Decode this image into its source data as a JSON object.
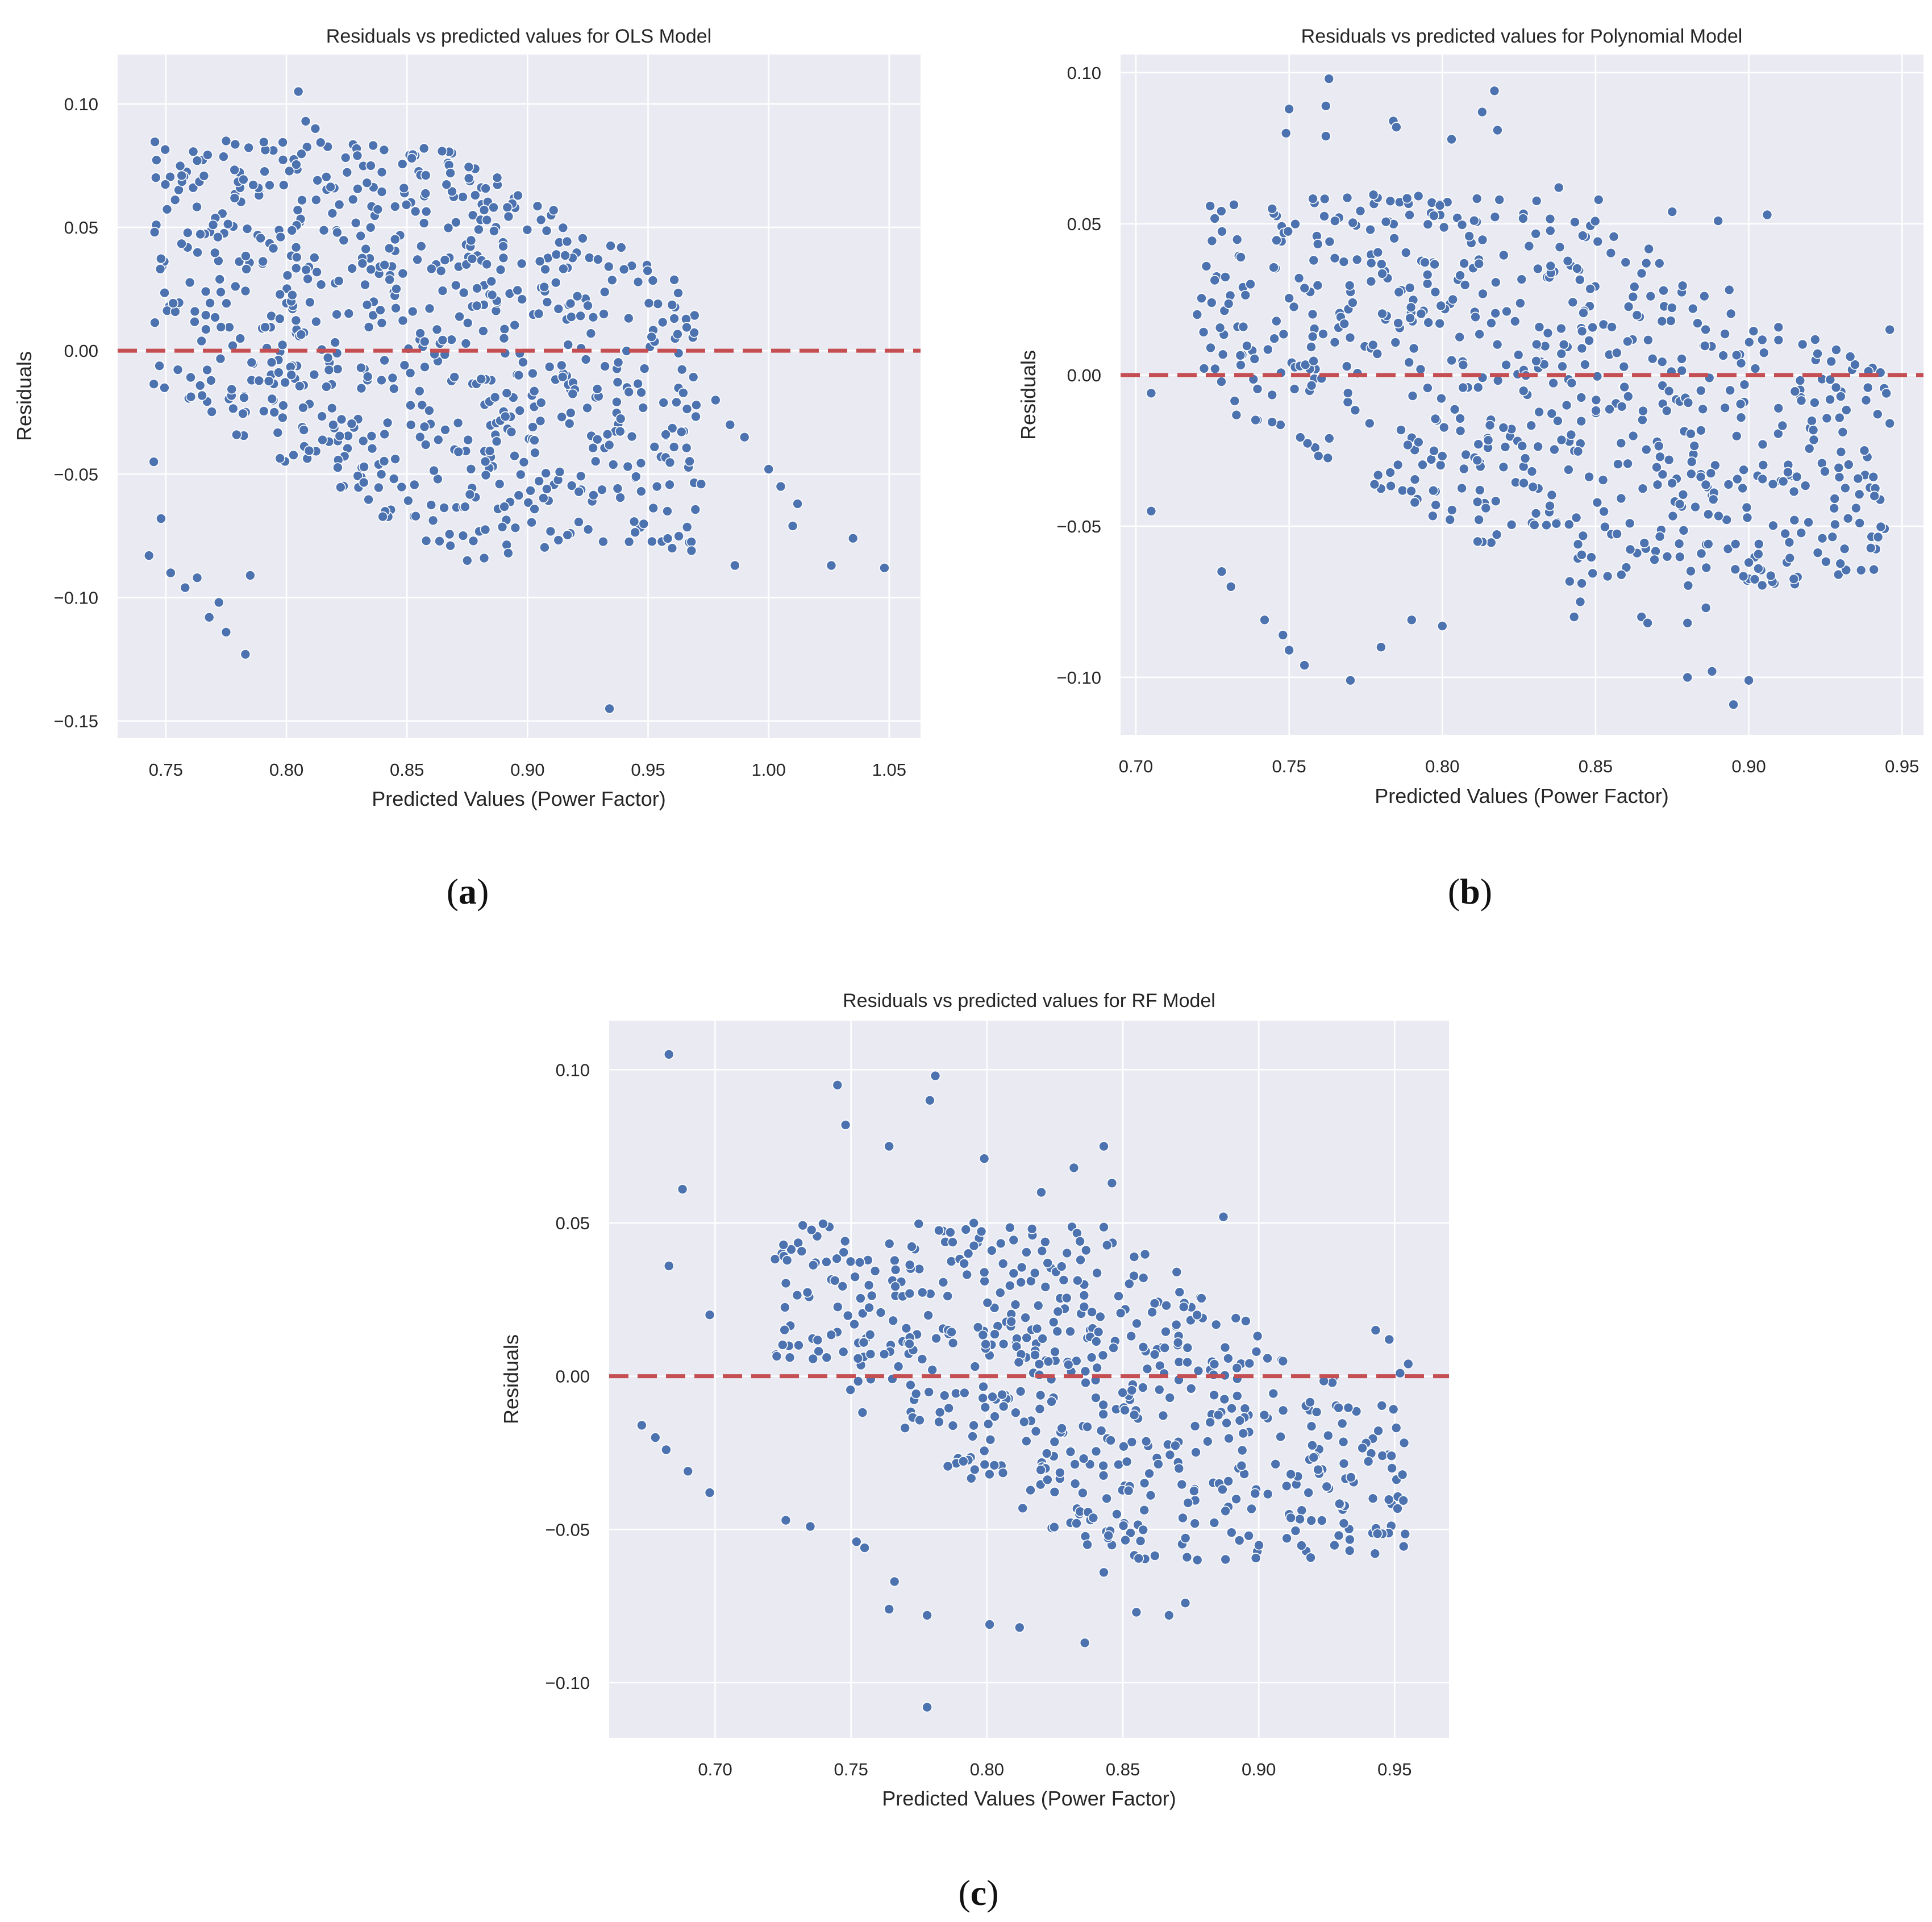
{
  "colors": {
    "plot_background": "#eaeaf2",
    "grid": "#ffffff",
    "points": "#4c72b0",
    "zero_line": "#c44e52",
    "text": "#262626"
  },
  "chart_data": [
    {
      "id": "a",
      "type": "scatter",
      "panel_label": "a",
      "title": "Residuals vs predicted values for OLS Model",
      "xlabel": "Predicted Values (Power Factor)",
      "ylabel": "Residuals",
      "xlim": [
        0.73,
        1.063
      ],
      "ylim": [
        -0.157,
        0.12
      ],
      "xticks": [
        0.75,
        0.8,
        0.85,
        0.9,
        0.95,
        1.0,
        1.05
      ],
      "xtick_labels": [
        "0.75",
        "0.80",
        "0.85",
        "0.90",
        "0.95",
        "1.00",
        "1.05"
      ],
      "yticks": [
        0.1,
        0.05,
        0.0,
        -0.05,
        -0.1,
        -0.15
      ],
      "ytick_labels": [
        "0.10",
        "0.05",
        "0.00",
        "−0.05",
        "−0.10",
        "−0.15"
      ],
      "grid": true,
      "reference_line": {
        "y": 0.0,
        "style": "dashed",
        "color": "#c44e52"
      },
      "series": [
        {
          "name": "residuals",
          "dense_region": {
            "x_range": [
              0.745,
              0.97
            ],
            "y_range": [
              -0.08,
              0.085
            ]
          },
          "points": [
            [
              0.805,
              0.105
            ],
            [
              0.808,
              0.093
            ],
            [
              0.812,
              0.09
            ],
            [
              0.775,
              0.085
            ],
            [
              0.852,
              0.078
            ],
            [
              0.763,
              0.077
            ],
            [
              0.835,
              0.075
            ],
            [
              0.868,
              0.072
            ],
            [
              0.882,
              0.057
            ],
            [
              0.745,
              -0.045
            ],
            [
              0.748,
              -0.068
            ],
            [
              0.743,
              -0.083
            ],
            [
              0.752,
              -0.09
            ],
            [
              0.758,
              -0.096
            ],
            [
              0.763,
              -0.092
            ],
            [
              0.768,
              -0.108
            ],
            [
              0.772,
              -0.102
            ],
            [
              0.775,
              -0.114
            ],
            [
              0.783,
              -0.123
            ],
            [
              0.785,
              -0.091
            ],
            [
              0.858,
              -0.077
            ],
            [
              0.868,
              -0.079
            ],
            [
              0.875,
              -0.085
            ],
            [
              0.882,
              -0.084
            ],
            [
              0.892,
              -0.082
            ],
            [
              0.908,
              -0.056
            ],
            [
              0.934,
              -0.145
            ],
            [
              0.945,
              -0.051
            ],
            [
              0.958,
              -0.065
            ],
            [
              0.96,
              -0.08
            ],
            [
              0.968,
              -0.081
            ],
            [
              0.972,
              -0.054
            ],
            [
              0.986,
              -0.087
            ],
            [
              1.01,
              -0.071
            ],
            [
              1.026,
              -0.087
            ],
            [
              1.035,
              -0.076
            ],
            [
              1.048,
              -0.088
            ],
            [
              0.99,
              -0.035
            ],
            [
              1.0,
              -0.048
            ],
            [
              1.005,
              -0.055
            ],
            [
              1.012,
              -0.062
            ],
            [
              0.97,
              -0.022
            ],
            [
              0.978,
              -0.02
            ],
            [
              0.984,
              -0.03
            ]
          ]
        }
      ]
    },
    {
      "id": "b",
      "type": "scatter",
      "panel_label": "b",
      "title": "Residuals vs predicted values for Polynomial Model",
      "xlabel": "Predicted Values (Power Factor)",
      "ylabel": "Residuals",
      "xlim": [
        0.695,
        0.957
      ],
      "ylim": [
        -0.119,
        0.106
      ],
      "xticks": [
        0.7,
        0.75,
        0.8,
        0.85,
        0.9,
        0.95
      ],
      "xtick_labels": [
        "0.70",
        "0.75",
        "0.80",
        "0.85",
        "0.90",
        "0.95"
      ],
      "yticks": [
        0.1,
        0.05,
        0.0,
        -0.05,
        -0.1
      ],
      "ytick_labels": [
        "0.10",
        "0.05",
        "0.00",
        "−0.05",
        "−0.10"
      ],
      "grid": true,
      "reference_line": {
        "y": 0.0,
        "style": "dashed",
        "color": "#c44e52"
      },
      "series": [
        {
          "name": "residuals",
          "dense_region": {
            "x_range": [
              0.72,
              0.945
            ],
            "y_range": [
              -0.07,
              0.06
            ]
          },
          "points": [
            [
              0.763,
              0.098
            ],
            [
              0.75,
              0.088
            ],
            [
              0.762,
              0.089
            ],
            [
              0.749,
              0.08
            ],
            [
              0.762,
              0.079
            ],
            [
              0.817,
              0.094
            ],
            [
              0.813,
              0.087
            ],
            [
              0.818,
              0.081
            ],
            [
              0.784,
              0.084
            ],
            [
              0.785,
              0.082
            ],
            [
              0.803,
              0.078
            ],
            [
              0.705,
              -0.045
            ],
            [
              0.705,
              -0.006
            ],
            [
              0.723,
              0.036
            ],
            [
              0.72,
              0.02
            ],
            [
              0.728,
              -0.065
            ],
            [
              0.731,
              -0.07
            ],
            [
              0.742,
              -0.081
            ],
            [
              0.748,
              -0.086
            ],
            [
              0.75,
              -0.091
            ],
            [
              0.755,
              -0.096
            ],
            [
              0.77,
              -0.101
            ],
            [
              0.78,
              -0.09
            ],
            [
              0.79,
              -0.081
            ],
            [
              0.8,
              -0.083
            ],
            [
              0.845,
              -0.075
            ],
            [
              0.843,
              -0.08
            ],
            [
              0.865,
              -0.08
            ],
            [
              0.867,
              -0.082
            ],
            [
              0.88,
              -0.1
            ],
            [
              0.888,
              -0.098
            ],
            [
              0.895,
              -0.109
            ],
            [
              0.9,
              -0.101
            ],
            [
              0.9,
              -0.062
            ],
            [
              0.88,
              -0.082
            ],
            [
              0.886,
              -0.077
            ],
            [
              0.924,
              -0.054
            ],
            [
              0.935,
              -0.044
            ],
            [
              0.941,
              -0.04
            ],
            [
              0.946,
              -0.016
            ],
            [
              0.946,
              0.015
            ],
            [
              0.906,
              0.053
            ],
            [
              0.89,
              0.051
            ],
            [
              0.875,
              0.054
            ],
            [
              0.851,
              0.058
            ],
            [
              0.838,
              0.062
            ]
          ]
        }
      ]
    },
    {
      "id": "c",
      "type": "scatter",
      "panel_label": "c",
      "title": "Residuals vs predicted values for RF Model",
      "xlabel": "Predicted Values (Power Factor)",
      "ylabel": "Residuals",
      "xlim": [
        0.661,
        0.97
      ],
      "ylim": [
        -0.118,
        0.116
      ],
      "xticks": [
        0.7,
        0.75,
        0.8,
        0.85,
        0.9,
        0.95
      ],
      "xtick_labels": [
        "0.70",
        "0.75",
        "0.80",
        "0.85",
        "0.90",
        "0.95"
      ],
      "yticks": [
        0.1,
        0.05,
        0.0,
        -0.05,
        -0.1
      ],
      "ytick_labels": [
        "0.10",
        "0.05",
        "0.00",
        "−0.05",
        "−0.10"
      ],
      "grid": true,
      "reference_line": {
        "y": 0.0,
        "style": "dashed",
        "color": "#c44e52"
      },
      "series": [
        {
          "name": "residuals",
          "dense_region": {
            "x_range": [
              0.72,
              0.955
            ],
            "y_range": [
              -0.06,
              0.05
            ]
          },
          "points": [
            [
              0.683,
              0.105
            ],
            [
              0.688,
              0.061
            ],
            [
              0.683,
              0.036
            ],
            [
              0.698,
              0.02
            ],
            [
              0.745,
              0.095
            ],
            [
              0.748,
              0.082
            ],
            [
              0.781,
              0.098
            ],
            [
              0.779,
              0.09
            ],
            [
              0.764,
              0.075
            ],
            [
              0.799,
              0.071
            ],
            [
              0.843,
              0.075
            ],
            [
              0.846,
              0.063
            ],
            [
              0.832,
              0.068
            ],
            [
              0.82,
              0.06
            ],
            [
              0.887,
              0.052
            ],
            [
              0.673,
              -0.016
            ],
            [
              0.678,
              -0.02
            ],
            [
              0.682,
              -0.024
            ],
            [
              0.69,
              -0.031
            ],
            [
              0.698,
              -0.038
            ],
            [
              0.726,
              -0.047
            ],
            [
              0.735,
              -0.049
            ],
            [
              0.752,
              -0.054
            ],
            [
              0.755,
              -0.056
            ],
            [
              0.764,
              -0.076
            ],
            [
              0.766,
              -0.067
            ],
            [
              0.778,
              -0.078
            ],
            [
              0.778,
              -0.108
            ],
            [
              0.801,
              -0.081
            ],
            [
              0.812,
              -0.082
            ],
            [
              0.836,
              -0.087
            ],
            [
              0.843,
              -0.064
            ],
            [
              0.855,
              -0.077
            ],
            [
              0.867,
              -0.078
            ],
            [
              0.873,
              -0.074
            ],
            [
              0.89,
              -0.051
            ],
            [
              0.925,
              -0.036
            ],
            [
              0.949,
              -0.03
            ],
            [
              0.955,
              0.004
            ],
            [
              0.952,
              0.001
            ],
            [
              0.943,
              0.015
            ],
            [
              0.948,
              0.012
            ]
          ]
        }
      ]
    }
  ]
}
